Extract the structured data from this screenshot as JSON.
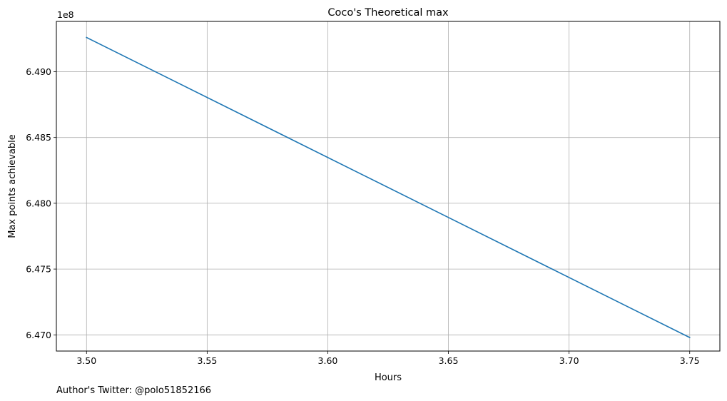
{
  "chart_data": {
    "type": "line",
    "title": "Coco's Theoretical max",
    "xlabel": "Hours",
    "ylabel": "Max points achievable",
    "y_offset_label": "1e8",
    "footnote": "Author's Twitter: @polo51852166",
    "xlim": [
      3.4875,
      3.7625
    ],
    "ylim": [
      6.46877,
      6.49382
    ],
    "x_ticks": [
      3.5,
      3.55,
      3.6,
      3.65,
      3.7,
      3.75
    ],
    "x_tick_labels": [
      "3.50",
      "3.55",
      "3.60",
      "3.65",
      "3.70",
      "3.75"
    ],
    "y_ticks": [
      6.47,
      6.475,
      6.48,
      6.485,
      6.49
    ],
    "y_tick_labels": [
      "6.470",
      "6.475",
      "6.480",
      "6.485",
      "6.490"
    ],
    "grid": true,
    "series": [
      {
        "color": "#1f77b4",
        "x": [
          3.5,
          3.75
        ],
        "y": [
          6.4926,
          6.4698
        ]
      }
    ]
  }
}
